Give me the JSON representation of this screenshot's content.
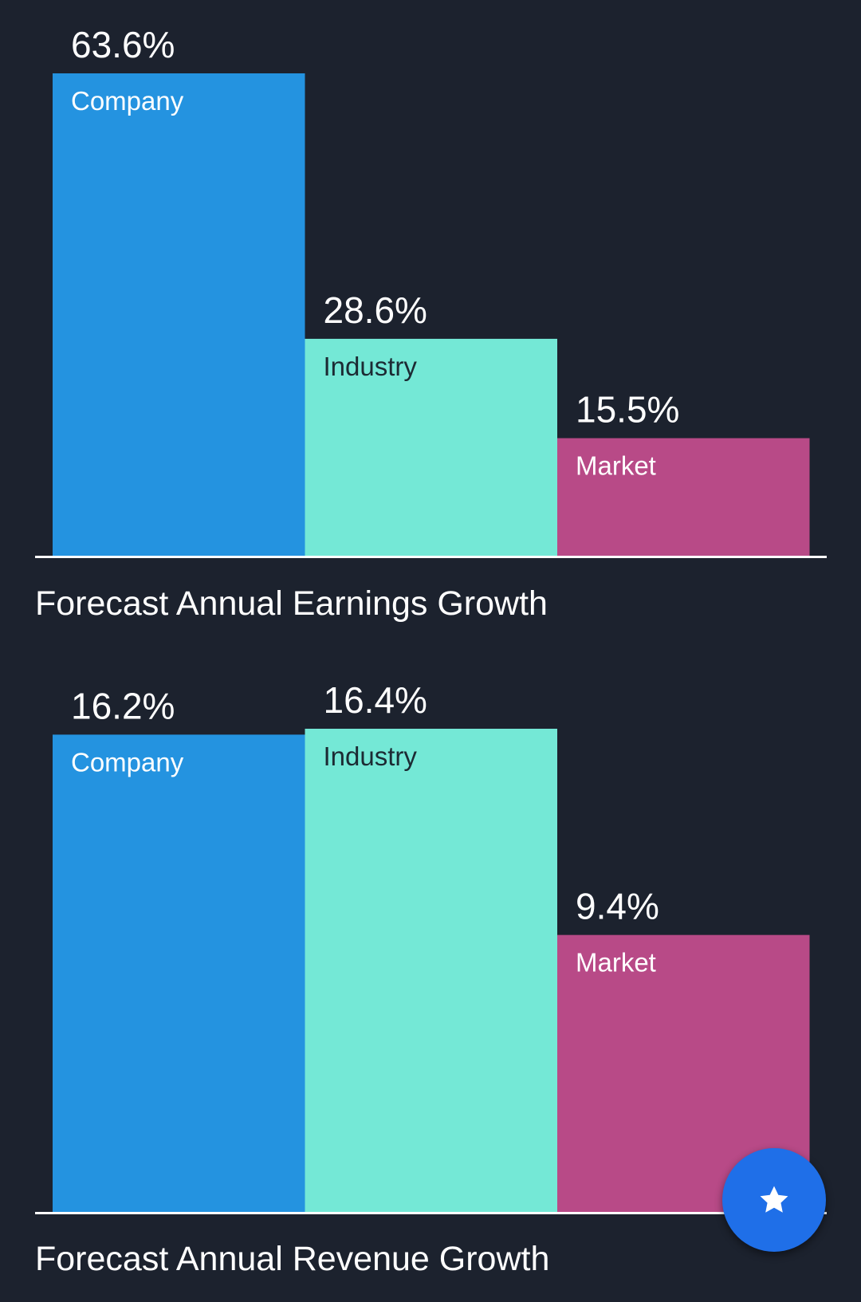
{
  "colors": {
    "background": "#1c222e",
    "company": "#2493e0",
    "industry": "#74e8d6",
    "market": "#b84a87",
    "baseline": "#ffffff",
    "fab": "#1f6fe8"
  },
  "chart_data": [
    {
      "type": "bar",
      "title": "Forecast Annual Earnings Growth",
      "categories": [
        "Company",
        "Industry",
        "Market"
      ],
      "values": [
        63.6,
        28.6,
        15.5
      ],
      "value_labels": [
        "63.6%",
        "28.6%",
        "15.5%"
      ],
      "ylim": [
        0,
        63.6
      ],
      "grid": false,
      "legend": "none"
    },
    {
      "type": "bar",
      "title": "Forecast Annual Revenue Growth",
      "categories": [
        "Company",
        "Industry",
        "Market"
      ],
      "values": [
        16.2,
        16.4,
        9.4
      ],
      "value_labels": [
        "16.2%",
        "16.4%",
        "9.4%"
      ],
      "ylim": [
        0,
        16.4
      ],
      "grid": false,
      "legend": "none"
    }
  ],
  "fab": {
    "icon": "star-icon"
  }
}
